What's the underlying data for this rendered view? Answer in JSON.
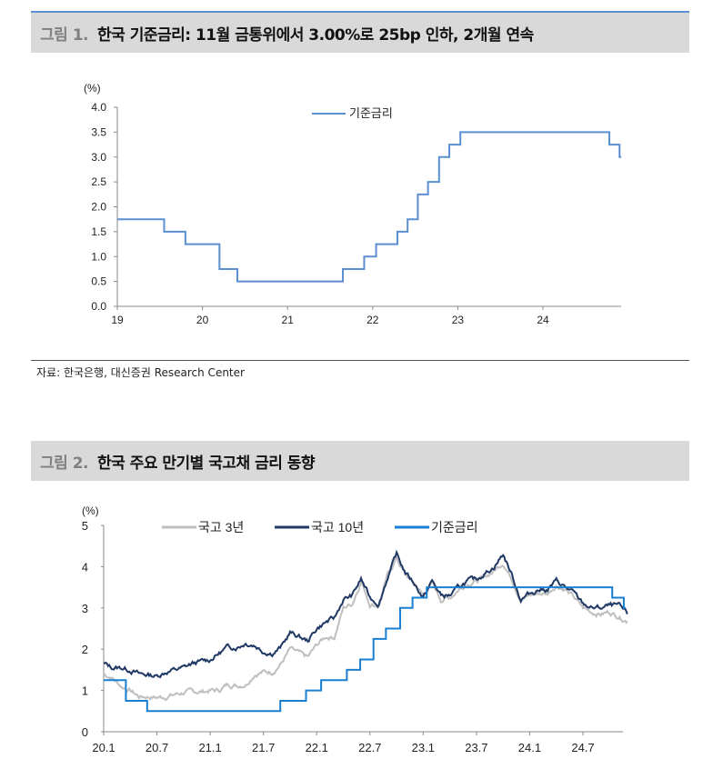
{
  "figure1": {
    "number": "그림 1.",
    "title": "한국 기준금리: 11월 금통위에서 3.00%로 25bp 인하, 2개월 연속",
    "source": "자료: 한국은행, 대신증권 Research Center"
  },
  "figure2": {
    "number": "그림 2.",
    "title": "한국 주요 만기별 국고채 금리 동향"
  },
  "chart_data": [
    {
      "type": "line",
      "title": "한국 기준금리",
      "ylabel": "(%)",
      "ylim": [
        0,
        4.0
      ],
      "yticks": [
        "0.0",
        "0.5",
        "1.0",
        "1.5",
        "2.0",
        "2.5",
        "3.0",
        "3.5",
        "4.0"
      ],
      "xlim": [
        19,
        24.92
      ],
      "xticks": [
        "19",
        "20",
        "21",
        "22",
        "23",
        "24"
      ],
      "legend_position": "top-center",
      "series": [
        {
          "name": "기준금리",
          "color": "#5b8fd0",
          "step": true,
          "x": [
            19,
            19.55,
            19.8,
            20.2,
            20.41,
            21.65,
            21.9,
            22.04,
            22.29,
            22.41,
            22.53,
            22.65,
            22.78,
            22.9,
            23.03,
            24.78,
            24.9
          ],
          "y": [
            1.75,
            1.5,
            1.25,
            0.75,
            0.5,
            0.75,
            1.0,
            1.25,
            1.5,
            1.75,
            2.25,
            2.5,
            3.0,
            3.25,
            3.5,
            3.25,
            3.0
          ]
        }
      ]
    },
    {
      "type": "line",
      "ylabel": "(%)",
      "ylim": [
        0,
        5
      ],
      "yticks": [
        "0",
        "1",
        "2",
        "3",
        "4",
        "5"
      ],
      "x_unit": "months since 2020-01",
      "xlim": [
        0,
        58.8
      ],
      "xticks": [
        "20.1",
        "20.7",
        "21.1",
        "21.7",
        "22.1",
        "22.7",
        "23.1",
        "23.7",
        "24.1",
        "24.7"
      ],
      "legend_position": "top",
      "series": [
        {
          "name": "국고 3년",
          "color": "#bfbfbf",
          "y": [
            1.4,
            1.3,
            1.1,
            1.0,
            0.85,
            0.85,
            0.83,
            0.85,
            0.9,
            0.95,
            0.97,
            0.97,
            1.0,
            1.0,
            1.15,
            1.12,
            1.15,
            1.4,
            1.45,
            1.45,
            1.65,
            2.0,
            1.9,
            1.8,
            2.1,
            2.3,
            2.3,
            3.0,
            3.1,
            3.65,
            3.1,
            3.05,
            3.8,
            4.2,
            3.8,
            3.6,
            3.3,
            3.6,
            3.2,
            3.25,
            3.45,
            3.6,
            3.65,
            3.75,
            3.9,
            4.1,
            3.7,
            3.2,
            3.3,
            3.35,
            3.35,
            3.55,
            3.45,
            3.25,
            3.0,
            2.9,
            2.85,
            2.9,
            2.8,
            2.68
          ]
        },
        {
          "name": "국고 10년",
          "color": "#1f3864",
          "y": [
            1.65,
            1.55,
            1.55,
            1.5,
            1.4,
            1.38,
            1.35,
            1.45,
            1.5,
            1.55,
            1.65,
            1.7,
            1.75,
            1.9,
            2.05,
            2.05,
            2.15,
            2.1,
            1.95,
            1.9,
            2.05,
            2.4,
            2.3,
            2.2,
            2.5,
            2.65,
            2.75,
            3.2,
            3.3,
            3.7,
            3.25,
            3.1,
            3.75,
            4.3,
            3.85,
            3.6,
            3.25,
            3.65,
            3.3,
            3.3,
            3.5,
            3.65,
            3.7,
            3.85,
            4.0,
            4.3,
            3.8,
            3.2,
            3.35,
            3.45,
            3.45,
            3.65,
            3.5,
            3.35,
            3.1,
            3.0,
            3.0,
            3.05,
            3.05,
            2.85
          ]
        },
        {
          "name": "기준금리",
          "color": "#1a7fd0",
          "step": true,
          "x": [
            0,
            2.5,
            4.9,
            19.9,
            22.8,
            24.5,
            27.4,
            28.9,
            30.4,
            31.8,
            33.4,
            34.8,
            36.4,
            57.3,
            58.6
          ],
          "y": [
            1.25,
            0.75,
            0.5,
            0.75,
            1.0,
            1.25,
            1.5,
            1.75,
            2.25,
            2.5,
            3.0,
            3.25,
            3.5,
            3.25,
            3.0
          ]
        }
      ]
    }
  ]
}
